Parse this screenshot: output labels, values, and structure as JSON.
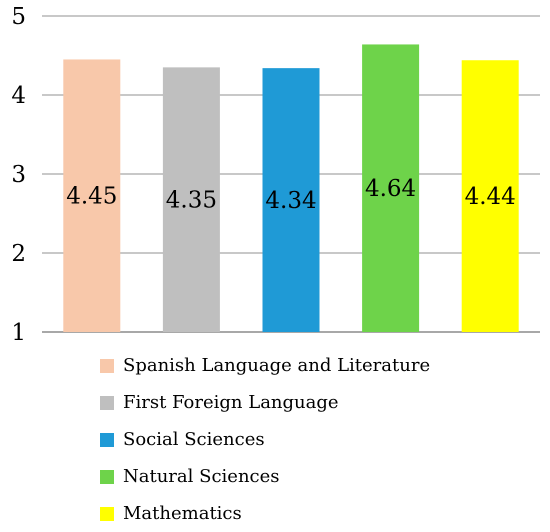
{
  "chart_data": {
    "type": "bar",
    "categories": [
      "Spanish Language and Literature",
      "First Foreign Language",
      "Social Sciences",
      "Natural Sciences",
      "Mathematics"
    ],
    "values": [
      4.45,
      4.35,
      4.34,
      4.64,
      4.44
    ],
    "data_labels": [
      "4.45",
      "4.35",
      "4.34",
      "4.64",
      "4.44"
    ],
    "colors": [
      "#f8c8aa",
      "#bfbfbf",
      "#1f9ad6",
      "#6ed34a",
      "#ffff00"
    ],
    "ylim": [
      1,
      5
    ],
    "yticks": [
      1,
      2,
      3,
      4,
      5
    ],
    "grid": true,
    "legend_position": "bottom",
    "title": "",
    "xlabel": "",
    "ylabel": ""
  }
}
